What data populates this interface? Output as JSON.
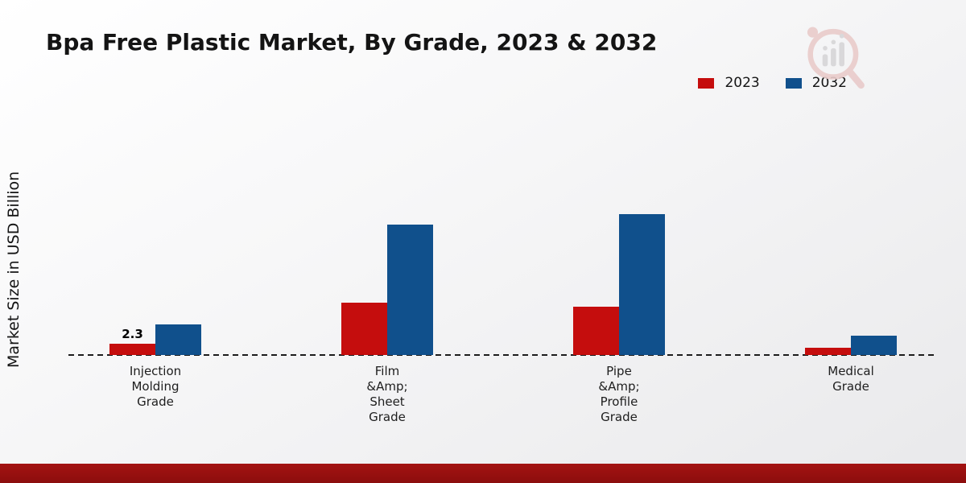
{
  "chart_data": {
    "type": "bar",
    "title": "Bpa Free Plastic Market, By Grade, 2023 & 2032",
    "ylabel": "Market Size in USD Billion",
    "categories": [
      "Injection\nMolding\nGrade",
      "Film\n&Amp;\nSheet\nGrade",
      "Pipe\n&Amp;\nProfile\nGrade",
      "Medical\nGrade"
    ],
    "series": [
      {
        "name": "2023",
        "color": "#c50d0d",
        "values": [
          2.3,
          10.5,
          9.7,
          1.5
        ]
      },
      {
        "name": "2032",
        "color": "#10508c",
        "values": [
          6.2,
          26.3,
          28.4,
          3.9
        ]
      }
    ],
    "ylim": [
      0,
      30
    ],
    "grid": false,
    "legend_position": "top-right",
    "baseline_style": "dashed",
    "bar_labels": [
      {
        "category_index": 0,
        "series_index": 0,
        "text": "2.3"
      }
    ]
  },
  "branding": {
    "footer_color_top": "#a31312",
    "footer_color_bottom": "#8c0d0d",
    "watermark_pink": "#e9cbca",
    "watermark_gray": "#d7d6d8"
  }
}
